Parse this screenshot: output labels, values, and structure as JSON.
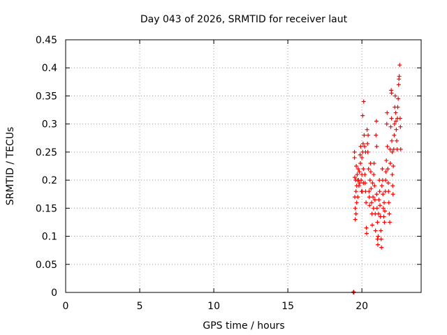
{
  "chart_data": {
    "type": "scatter",
    "title": "Day 043 of 2026, SRMTID for receiver laut",
    "xlabel": "GPS time / hours",
    "ylabel": "SRMTID / TECUs",
    "xlim": [
      0,
      24
    ],
    "ylim": [
      0,
      0.45
    ],
    "xticks": [
      0,
      5,
      10,
      15,
      20
    ],
    "xtick_labels": [
      "0",
      "5",
      "10",
      "15",
      "20"
    ],
    "yticks": [
      0,
      0.05,
      0.1,
      0.15,
      0.2,
      0.25,
      0.3,
      0.35,
      0.4,
      0.45
    ],
    "ytick_labels": [
      "0",
      "0.05",
      "0.1",
      "0.15",
      "0.2",
      "0.25",
      "0.3",
      "0.35",
      "0.4",
      "0.45"
    ],
    "grid": true,
    "marker": "plus",
    "colors": {
      "series": "#ff0000",
      "grid": "#a0a0a0",
      "frame": "#000000"
    },
    "series": [
      {
        "points": [
          [
            19.42,
            0.0
          ],
          [
            19.44,
            0.001
          ],
          [
            19.46,
            0.0
          ],
          [
            19.5,
            0.25
          ],
          [
            19.5,
            0.24
          ],
          [
            19.52,
            0.205
          ],
          [
            19.52,
            0.17
          ],
          [
            19.55,
            0.15
          ],
          [
            19.55,
            0.13
          ],
          [
            19.58,
            0.2
          ],
          [
            19.6,
            0.18
          ],
          [
            19.6,
            0.14
          ],
          [
            19.62,
            0.225
          ],
          [
            19.65,
            0.19
          ],
          [
            19.65,
            0.16
          ],
          [
            19.68,
            0.21
          ],
          [
            19.7,
            0.2
          ],
          [
            19.72,
            0.17
          ],
          [
            19.75,
            0.22
          ],
          [
            19.78,
            0.2
          ],
          [
            19.8,
            0.19
          ],
          [
            19.82,
            0.215
          ],
          [
            19.85,
            0.195
          ],
          [
            19.88,
            0.245
          ],
          [
            19.9,
            0.23
          ],
          [
            19.92,
            0.26
          ],
          [
            19.95,
            0.2
          ],
          [
            19.98,
            0.18
          ],
          [
            20.0,
            0.24
          ],
          [
            20.0,
            0.21
          ],
          [
            20.02,
            0.18
          ],
          [
            20.05,
            0.25
          ],
          [
            20.05,
            0.315
          ],
          [
            20.08,
            0.265
          ],
          [
            20.1,
            0.22
          ],
          [
            20.1,
            0.195
          ],
          [
            20.12,
            0.34
          ],
          [
            20.15,
            0.28
          ],
          [
            20.18,
            0.26
          ],
          [
            20.2,
            0.21
          ],
          [
            20.22,
            0.195
          ],
          [
            20.25,
            0.25
          ],
          [
            20.25,
            0.18
          ],
          [
            20.28,
            0.16
          ],
          [
            20.3,
            0.115
          ],
          [
            20.32,
            0.105
          ],
          [
            20.35,
            0.29
          ],
          [
            20.38,
            0.265
          ],
          [
            20.4,
            0.25
          ],
          [
            20.42,
            0.28
          ],
          [
            20.45,
            0.22
          ],
          [
            20.48,
            0.18
          ],
          [
            20.5,
            0.17
          ],
          [
            20.52,
            0.155
          ],
          [
            20.55,
            0.2
          ],
          [
            20.58,
            0.23
          ],
          [
            20.6,
            0.215
          ],
          [
            20.62,
            0.185
          ],
          [
            20.65,
            0.16
          ],
          [
            20.68,
            0.14
          ],
          [
            20.7,
            0.12
          ],
          [
            20.72,
            0.195
          ],
          [
            20.75,
            0.17
          ],
          [
            20.78,
            0.15
          ],
          [
            20.8,
            0.21
          ],
          [
            20.82,
            0.23
          ],
          [
            20.85,
            0.19
          ],
          [
            20.88,
            0.165
          ],
          [
            20.9,
            0.14
          ],
          [
            20.92,
            0.11
          ],
          [
            20.95,
            0.28
          ],
          [
            20.98,
            0.305
          ],
          [
            21.0,
            0.26
          ],
          [
            21.0,
            0.175
          ],
          [
            21.02,
            0.15
          ],
          [
            21.05,
            0.125
          ],
          [
            21.05,
            0.095
          ],
          [
            21.08,
            0.085
          ],
          [
            21.1,
            0.1
          ],
          [
            21.12,
            0.14
          ],
          [
            21.15,
            0.165
          ],
          [
            21.18,
            0.2
          ],
          [
            21.2,
            0.18
          ],
          [
            21.22,
            0.155
          ],
          [
            21.25,
            0.135
          ],
          [
            21.28,
            0.11
          ],
          [
            21.3,
            0.095
          ],
          [
            21.32,
            0.08
          ],
          [
            21.35,
            0.19
          ],
          [
            21.38,
            0.22
          ],
          [
            21.4,
            0.2
          ],
          [
            21.42,
            0.175
          ],
          [
            21.45,
            0.15
          ],
          [
            21.48,
            0.135
          ],
          [
            21.5,
            0.16
          ],
          [
            21.52,
            0.125
          ],
          [
            21.55,
            0.145
          ],
          [
            21.58,
            0.18
          ],
          [
            21.6,
            0.2
          ],
          [
            21.62,
            0.215
          ],
          [
            21.65,
            0.235
          ],
          [
            21.68,
            0.3
          ],
          [
            21.7,
            0.32
          ],
          [
            21.72,
            0.26
          ],
          [
            21.75,
            0.22
          ],
          [
            21.78,
            0.195
          ],
          [
            21.8,
            0.18
          ],
          [
            21.82,
            0.16
          ],
          [
            21.85,
            0.14
          ],
          [
            21.88,
            0.125
          ],
          [
            21.9,
            0.255
          ],
          [
            21.92,
            0.23
          ],
          [
            21.95,
            0.295
          ],
          [
            21.98,
            0.36
          ],
          [
            22.0,
            0.355
          ],
          [
            22.0,
            0.31
          ],
          [
            22.02,
            0.27
          ],
          [
            22.05,
            0.25
          ],
          [
            22.05,
            0.21
          ],
          [
            22.08,
            0.19
          ],
          [
            22.1,
            0.175
          ],
          [
            22.12,
            0.225
          ],
          [
            22.15,
            0.255
          ],
          [
            22.18,
            0.28
          ],
          [
            22.2,
            0.3
          ],
          [
            22.22,
            0.33
          ],
          [
            22.25,
            0.35
          ],
          [
            22.28,
            0.32
          ],
          [
            22.3,
            0.305
          ],
          [
            22.32,
            0.29
          ],
          [
            22.35,
            0.27
          ],
          [
            22.38,
            0.255
          ],
          [
            22.4,
            0.31
          ],
          [
            22.42,
            0.33
          ],
          [
            22.45,
            0.345
          ],
          [
            22.48,
            0.37
          ],
          [
            22.5,
            0.38
          ],
          [
            22.52,
            0.385
          ],
          [
            22.55,
            0.405
          ],
          [
            22.58,
            0.31
          ],
          [
            22.6,
            0.295
          ],
          [
            22.62,
            0.255
          ]
        ]
      }
    ]
  }
}
